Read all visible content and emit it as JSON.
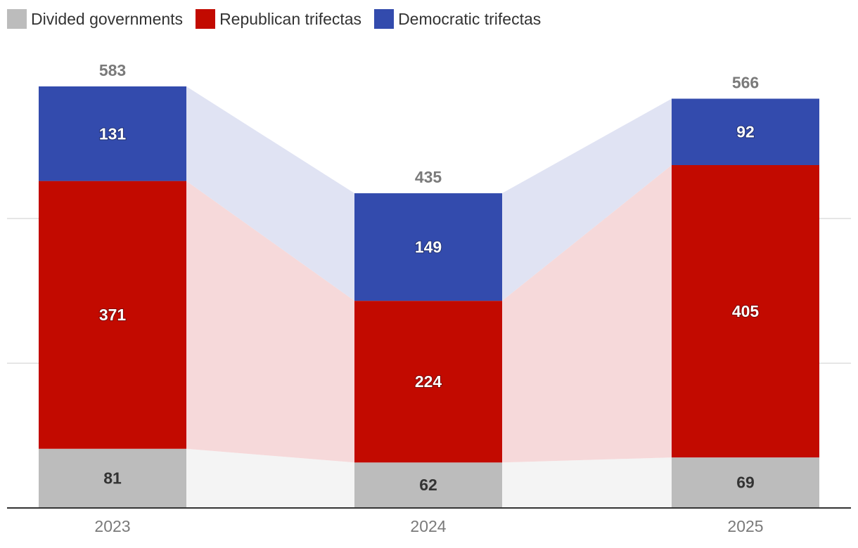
{
  "colors": {
    "divided": "#bcbcbc",
    "republican": "#c20a00",
    "democratic": "#334bad",
    "gridline": "#dddddd",
    "axis": "#333333",
    "label_dark": "#333333",
    "label_light": "#ffffff",
    "total_label": "#7a7a7a",
    "tick_label": "#7a7a7a"
  },
  "legend": [
    {
      "name": "Divided governments",
      "color": "#bcbcbc"
    },
    {
      "name": "Republican trifectas",
      "color": "#c20a00"
    },
    {
      "name": "Democratic trifectas",
      "color": "#334bad"
    }
  ],
  "chart_data": {
    "type": "bar",
    "stacked": true,
    "categories": [
      "2023",
      "2024",
      "2025"
    ],
    "series": [
      {
        "name": "Divided governments",
        "values": [
          81,
          62,
          69
        ],
        "color": "#bcbcbc",
        "label_color": "#333333"
      },
      {
        "name": "Republican trifectas",
        "values": [
          371,
          224,
          405
        ],
        "color": "#c20a00",
        "label_color": "#ffffff"
      },
      {
        "name": "Democratic trifectas",
        "values": [
          131,
          149,
          92
        ],
        "color": "#334bad",
        "label_color": "#ffffff"
      }
    ],
    "totals": [
      583,
      435,
      566
    ],
    "ylim": [
      0,
      583
    ],
    "legend_position": "top-left",
    "gridlines": true,
    "connector_bands": true
  }
}
